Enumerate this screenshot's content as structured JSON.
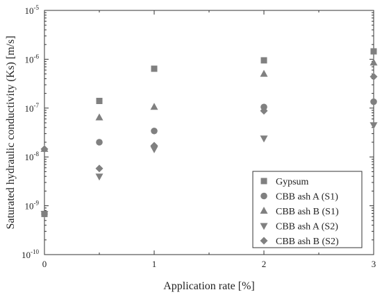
{
  "chart_data": {
    "type": "scatter",
    "xlabel": "Application rate [%]",
    "ylabel": "Saturated hydraulic conductivity (Ks) [m/s]",
    "xlim": [
      0,
      3
    ],
    "ylim": [
      1e-10,
      1e-05
    ],
    "yscale": "log",
    "x_ticks": [
      0,
      1,
      2,
      3
    ],
    "x_minor_ticks": [
      0.5,
      1.5,
      2.5
    ],
    "y_tick_exponents": [
      -10,
      -9,
      -8,
      -7,
      -6,
      -5
    ],
    "y_tick_labels": [
      {
        "base": "10",
        "exp": "-10"
      },
      {
        "base": "10",
        "exp": "-9"
      },
      {
        "base": "10",
        "exp": "-8"
      },
      {
        "base": "10",
        "exp": "-7"
      },
      {
        "base": "10",
        "exp": "-6"
      },
      {
        "base": "10",
        "exp": "-5"
      }
    ],
    "grid": false,
    "legend_position": "bottom-right",
    "marker_color": "#808080",
    "series": [
      {
        "name": "Gypsum",
        "marker": "square",
        "x": [
          0,
          0.5,
          1,
          2,
          3
        ],
        "y": [
          6.8e-10,
          1.4e-07,
          6.4e-07,
          9.5e-07,
          1.45e-06
        ]
      },
      {
        "name": "CBB ash A (S1)",
        "marker": "circle",
        "x": [
          0,
          0.5,
          1,
          2,
          3
        ],
        "y": [
          6.8e-10,
          2e-08,
          3.4e-08,
          1.05e-07,
          1.35e-07
        ]
      },
      {
        "name": "CBB ash B (S1)",
        "marker": "triangle-up",
        "x": [
          0,
          0.5,
          1,
          2,
          3
        ],
        "y": [
          1.45e-08,
          6.4e-08,
          1.05e-07,
          5e-07,
          8.5e-07
        ]
      },
      {
        "name": "CBB ash A (S2)",
        "marker": "triangle-down",
        "x": [
          0,
          0.5,
          1,
          2,
          3
        ],
        "y": [
          6.8e-10,
          4e-09,
          1.45e-08,
          2.4e-08,
          4.5e-08
        ]
      },
      {
        "name": "CBB ash B (S2)",
        "marker": "diamond",
        "x": [
          0,
          0.5,
          1,
          2,
          3
        ],
        "y": [
          1.45e-08,
          5.8e-09,
          1.7e-08,
          8.8e-08,
          4.4e-07
        ]
      }
    ]
  }
}
